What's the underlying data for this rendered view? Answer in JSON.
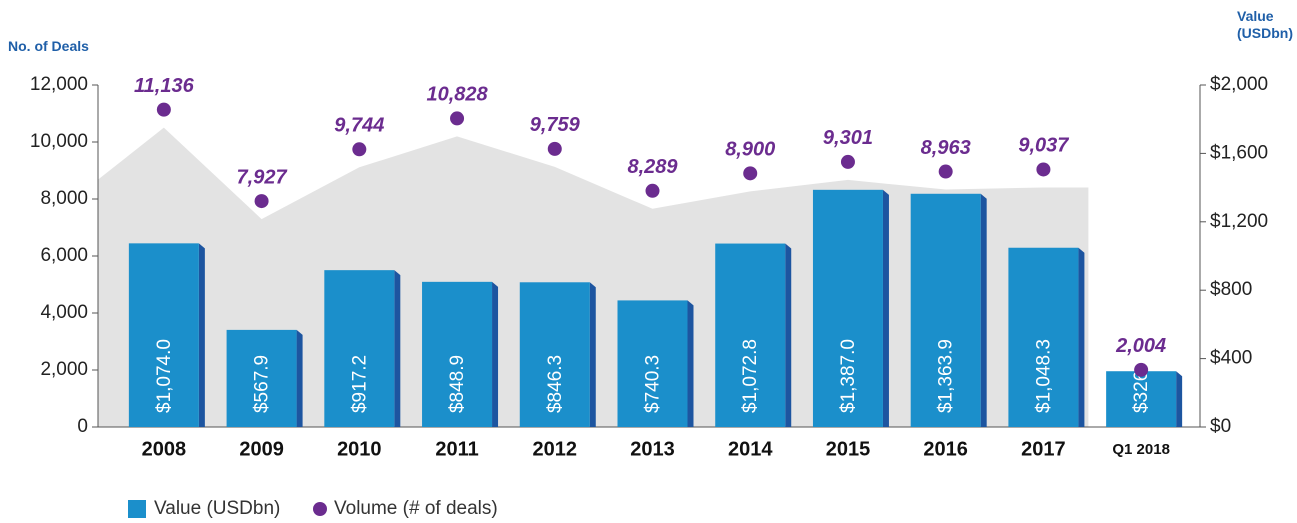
{
  "chart_data": {
    "type": "bar",
    "y_label": "No. of Deals",
    "y2_label": "Value (USDbn)",
    "categories": [
      "2008",
      "2009",
      "2010",
      "2011",
      "2012",
      "2013",
      "2014",
      "2015",
      "2016",
      "2017",
      "Q1 2018"
    ],
    "ylim": [
      0,
      12000
    ],
    "yticks": [
      0,
      {
        "value": 2000,
        "label": "2,000"
      },
      {
        "value": 4000,
        "label": "4,000"
      },
      {
        "value": 6000,
        "label": "6,000"
      },
      {
        "value": 8000,
        "label": "8,000"
      },
      {
        "value": 10000,
        "label": "10,000"
      },
      {
        "value": 12000,
        "label": "12,000"
      }
    ],
    "y2lim": [
      0,
      2000
    ],
    "y2ticks": [
      {
        "value": 0,
        "label": "$0"
      },
      {
        "value": 400,
        "label": "$400"
      },
      {
        "value": 800,
        "label": "$800"
      },
      {
        "value": 1200,
        "label": "$1,200"
      },
      {
        "value": 1600,
        "label": "$1,600"
      },
      {
        "value": 2000,
        "label": "$2,000"
      }
    ],
    "legend": "bottom-left",
    "series": [
      {
        "name": "Value (USDbn)",
        "type": "bar",
        "axis": "y2",
        "color": "#1b8fcb",
        "values": [
          1074.0,
          567.9,
          917.2,
          848.9,
          846.3,
          740.3,
          1072.8,
          1387.0,
          1363.9,
          1048.3,
          326.2
        ],
        "value_labels": [
          "$1,074.0",
          "$567.9",
          "$917.2",
          "$848.9",
          "$846.3",
          "$740.3",
          "$1,072.8",
          "$1,387.0",
          "$1,363.9",
          "$1,048.3",
          "$326.2"
        ]
      },
      {
        "name": "Volume (# of deals)",
        "type": "scatter",
        "color": "#6b2c8f",
        "values": [
          11136,
          7927,
          9744,
          10828,
          9759,
          8289,
          8900,
          9301,
          8963,
          9037,
          2004
        ],
        "value_labels": [
          "11,136",
          "7,927",
          "9,744",
          "10,828",
          "9,759",
          "8,289",
          "8,900",
          "9,301",
          "8,963",
          "9,037",
          "2,004"
        ]
      }
    ]
  }
}
